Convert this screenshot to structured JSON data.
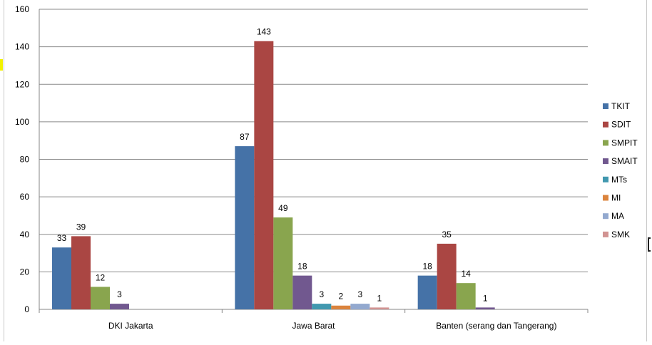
{
  "chart_data": {
    "type": "bar",
    "title": "",
    "xlabel": "",
    "ylabel": "",
    "ylim": [
      0,
      160
    ],
    "yticks": [
      0,
      20,
      40,
      60,
      80,
      100,
      120,
      140,
      160
    ],
    "grid": true,
    "legend_position": "right",
    "categories": [
      "DKI Jakarta",
      "Jawa Barat",
      "Banten (serang dan Tangerang)"
    ],
    "series": [
      {
        "name": "TKIT",
        "color": "#4572A7",
        "values": [
          33,
          87,
          18
        ]
      },
      {
        "name": "SDIT",
        "color": "#AA4643",
        "values": [
          39,
          143,
          35
        ]
      },
      {
        "name": "SMPIT",
        "color": "#89A54E",
        "values": [
          12,
          49,
          14
        ]
      },
      {
        "name": "SMAIT",
        "color": "#71588F",
        "values": [
          3,
          18,
          1
        ]
      },
      {
        "name": "MTs",
        "color": "#4198AF",
        "values": [
          null,
          3,
          null
        ]
      },
      {
        "name": "MI",
        "color": "#DB843D",
        "values": [
          null,
          2,
          null
        ]
      },
      {
        "name": "MA",
        "color": "#93A9CF",
        "values": [
          null,
          3,
          null
        ]
      },
      {
        "name": "SMK",
        "color": "#D19392",
        "values": [
          null,
          1,
          null
        ]
      }
    ]
  }
}
